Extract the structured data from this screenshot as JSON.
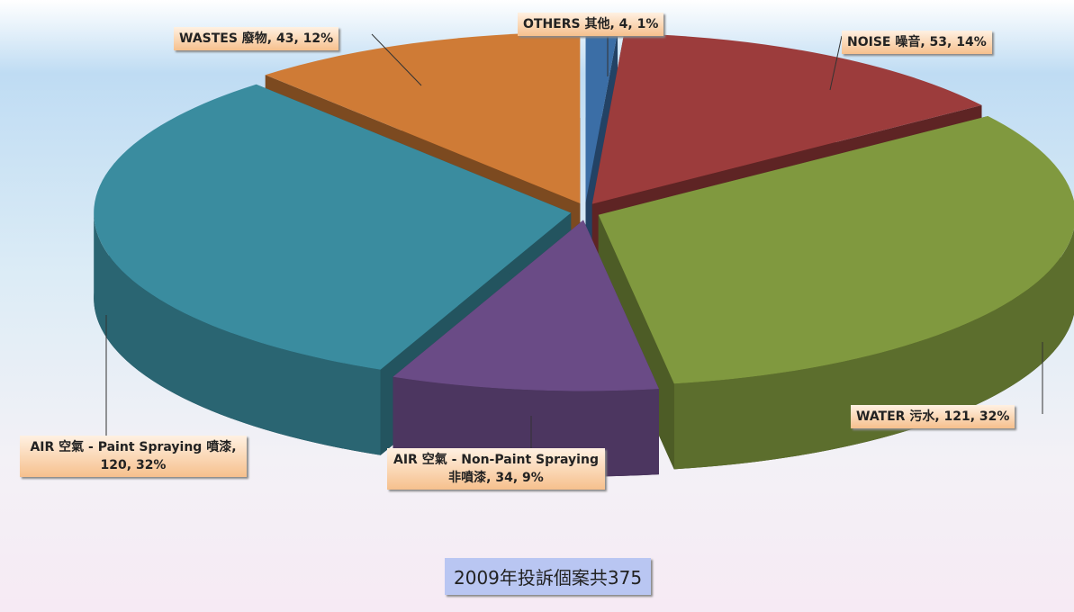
{
  "chart_data": {
    "type": "pie",
    "caption": "2009年投訴個案共375",
    "values": [
      4,
      53,
      121,
      34,
      120,
      43
    ],
    "value_labels": [
      "OTHERS 其他, 4, 1%",
      "NOISE 噪音, 53, 14%",
      "WATER 污水, 121, 32%",
      "AIR 空氣 - Non-Paint Spraying 非噴漆, 34, 9%",
      "AIR 空氣 - Paint Spraying 噴漆, 120, 32%",
      "WASTES 廢物, 43, 12%"
    ],
    "colors": [
      "#3b6ea6",
      "#9c3c3c",
      "#80993f",
      "#6a4b86",
      "#3a8c9f",
      "#cf7b36"
    ]
  }
}
